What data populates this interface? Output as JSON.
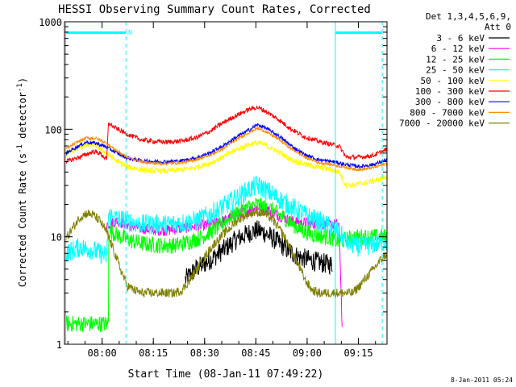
{
  "chart_data": {
    "type": "line",
    "title": "HESSI Observing Summary Count Rates, Corrected",
    "xlabel": "Start Time (08-Jan-11 07:49:22)",
    "ylabel": "Corrected Count Rate (s⁻¹ detector⁻¹)",
    "ylabel_main": "Corrected Count Rate (s",
    "ylabel_sup1": "-1",
    "ylabel_mid": " detector",
    "ylabel_sup2": "-1",
    "ylabel_end": ")",
    "yscale": "log",
    "ylim": [
      1,
      1000
    ],
    "xlim_minutes": [
      -0.37,
      94.0
    ],
    "x_tick_labels": [
      "08:00",
      "08:15",
      "08:30",
      "08:45",
      "09:00",
      "09:15"
    ],
    "x_tick_minutes": [
      10.63,
      25.63,
      40.63,
      55.63,
      70.63,
      85.63
    ],
    "y_tick_labels": [
      "1",
      "10",
      "100",
      "1000"
    ],
    "y_tick_values": [
      1,
      10,
      100,
      1000
    ],
    "date_stamp": "8-Jan-2011 05:24",
    "legend": {
      "header_line1": "Det 1,3,4,5,6,9,",
      "header_line2": "Att 0",
      "placement": "right"
    },
    "markers": {
      "solid_lines_minutes": [
        0,
        78.9
      ],
      "dashed_lines_minutes": [
        17.6,
        92.6
      ],
      "night_bars_minutes": [
        [
          0,
          17.6
        ],
        [
          78.9,
          92.6
        ]
      ],
      "label": "N",
      "color": "#00ffff"
    },
    "series": [
      {
        "name": "3 - 6 keV",
        "color": "#000000",
        "x": [
          35,
          38,
          42,
          46,
          50,
          54,
          56,
          58,
          62,
          65,
          68,
          72,
          75,
          78
        ],
        "y": [
          4.0,
          5.0,
          6.0,
          7.5,
          9.5,
          11,
          11.5,
          11,
          9.0,
          7.5,
          6.5,
          6.0,
          5.7,
          5.5
        ]
      },
      {
        "name": "6 - 12 keV",
        "color": "#ff00ff",
        "x": [
          12,
          15,
          18,
          22,
          26,
          30,
          34,
          38,
          42,
          46,
          50,
          54,
          56,
          58,
          62,
          66,
          70,
          74,
          78,
          80,
          81
        ],
        "y": [
          13,
          14,
          13,
          12,
          11.5,
          11.5,
          12,
          12.5,
          13,
          14,
          16,
          18,
          19,
          18.5,
          16,
          14,
          13.5,
          13,
          13,
          13,
          1
        ]
      },
      {
        "name": "12 - 25 keV",
        "color": "#00ff00",
        "x": [
          0,
          12.5,
          12.6,
          16,
          20,
          24,
          28,
          32,
          36,
          40,
          44,
          48,
          52,
          56,
          60,
          64,
          68,
          72,
          76,
          78,
          80,
          82,
          86,
          90,
          94
        ],
        "y": [
          1.55,
          1.55,
          11.5,
          10,
          9.0,
          8.5,
          8.3,
          8.3,
          9.0,
          10,
          12,
          15,
          18,
          20,
          18,
          15,
          12,
          10.5,
          10,
          9.8,
          9.0,
          9.5,
          10,
          10,
          10
        ]
      },
      {
        "name": "25 - 50 keV",
        "color": "#00ffff",
        "x": [
          0,
          2,
          4,
          6,
          8,
          10,
          12,
          12.5,
          14,
          18,
          22,
          26,
          30,
          34,
          38,
          42,
          46,
          50,
          54,
          56,
          58,
          62,
          66,
          70,
          74,
          78,
          80,
          82,
          86,
          90,
          94
        ],
        "y": [
          7.0,
          7.5,
          8.0,
          7.8,
          7.5,
          7.0,
          6.5,
          16,
          15,
          14,
          13,
          13,
          13,
          13.5,
          14,
          16,
          19,
          23,
          28,
          30,
          28,
          23,
          19,
          16,
          14,
          12,
          11,
          9,
          8,
          8.5,
          9
        ]
      },
      {
        "name": "50 - 100 keV",
        "color": "#ffff00",
        "x": [
          0,
          3,
          6,
          9,
          12,
          15,
          18,
          22,
          26,
          30,
          34,
          38,
          42,
          46,
          50,
          54,
          56,
          58,
          62,
          66,
          70,
          74,
          78,
          80,
          82,
          86,
          90,
          94
        ],
        "y": [
          58,
          65,
          72,
          70,
          60,
          50,
          45,
          42,
          41,
          41,
          42,
          44,
          48,
          55,
          65,
          73,
          75,
          72,
          62,
          52,
          47,
          44,
          42,
          40,
          30,
          31,
          33,
          36
        ]
      },
      {
        "name": "100 - 300 keV",
        "color": "#ff0000",
        "x": [
          0,
          4,
          8,
          10,
          12,
          12.5,
          14,
          18,
          22,
          26,
          30,
          34,
          38,
          42,
          46,
          50,
          54,
          56,
          58,
          62,
          66,
          70,
          74,
          78,
          80,
          82,
          86,
          90,
          94
        ],
        "y": [
          50,
          55,
          62,
          60,
          52,
          115,
          105,
          90,
          80,
          77,
          76,
          78,
          83,
          95,
          115,
          135,
          155,
          160,
          150,
          125,
          100,
          85,
          77,
          72,
          70,
          55,
          55,
          57,
          65
        ]
      },
      {
        "name": "300 - 800 keV",
        "color": "#0000ff",
        "x": [
          0,
          3,
          6,
          9,
          12,
          15,
          18,
          22,
          26,
          30,
          34,
          38,
          42,
          46,
          50,
          54,
          56,
          58,
          62,
          66,
          70,
          74,
          78,
          82,
          86,
          90,
          94
        ],
        "y": [
          60,
          68,
          76,
          74,
          68,
          60,
          54,
          51,
          50,
          50,
          51,
          54,
          60,
          70,
          85,
          100,
          110,
          105,
          88,
          70,
          58,
          52,
          50,
          47,
          45,
          47,
          52
        ]
      },
      {
        "name": "800 - 7000 keV",
        "color": "#ff8c00",
        "x": [
          0,
          3,
          6,
          9,
          12,
          15,
          18,
          22,
          26,
          30,
          34,
          38,
          42,
          46,
          50,
          54,
          56,
          58,
          62,
          66,
          70,
          74,
          78,
          82,
          86,
          90,
          94
        ],
        "y": [
          65,
          75,
          83,
          82,
          74,
          63,
          55,
          50,
          48,
          48,
          49,
          52,
          57,
          66,
          80,
          95,
          102,
          97,
          82,
          66,
          55,
          49,
          47,
          44,
          42,
          44,
          48
        ]
      },
      {
        "name": "7000 - 20000 keV",
        "color": "#808000",
        "x": [
          0,
          2,
          4,
          6,
          8,
          10,
          12,
          14,
          16,
          18,
          20,
          22,
          24,
          26,
          28,
          30,
          32,
          34,
          36,
          38,
          40,
          42,
          44,
          46,
          48,
          50,
          52,
          54,
          56,
          58,
          60,
          62,
          64,
          66,
          68,
          70,
          72,
          74,
          76,
          78,
          80,
          82,
          84,
          86,
          88,
          90,
          92,
          94
        ],
        "y": [
          9.5,
          12,
          15,
          16.5,
          16,
          14,
          11,
          7.5,
          5.0,
          3.5,
          3.2,
          3.0,
          3.0,
          3.0,
          3.0,
          3.0,
          3.0,
          3.2,
          3.8,
          4.8,
          6.0,
          7.5,
          9.0,
          10.5,
          12,
          14,
          15.5,
          16.5,
          17,
          16.5,
          15,
          12.5,
          10,
          7.5,
          5.5,
          4.0,
          3.2,
          3.0,
          3.0,
          3.0,
          3.0,
          3.0,
          3.0,
          3.5,
          4.2,
          5.0,
          6.0,
          7.0
        ]
      }
    ]
  }
}
